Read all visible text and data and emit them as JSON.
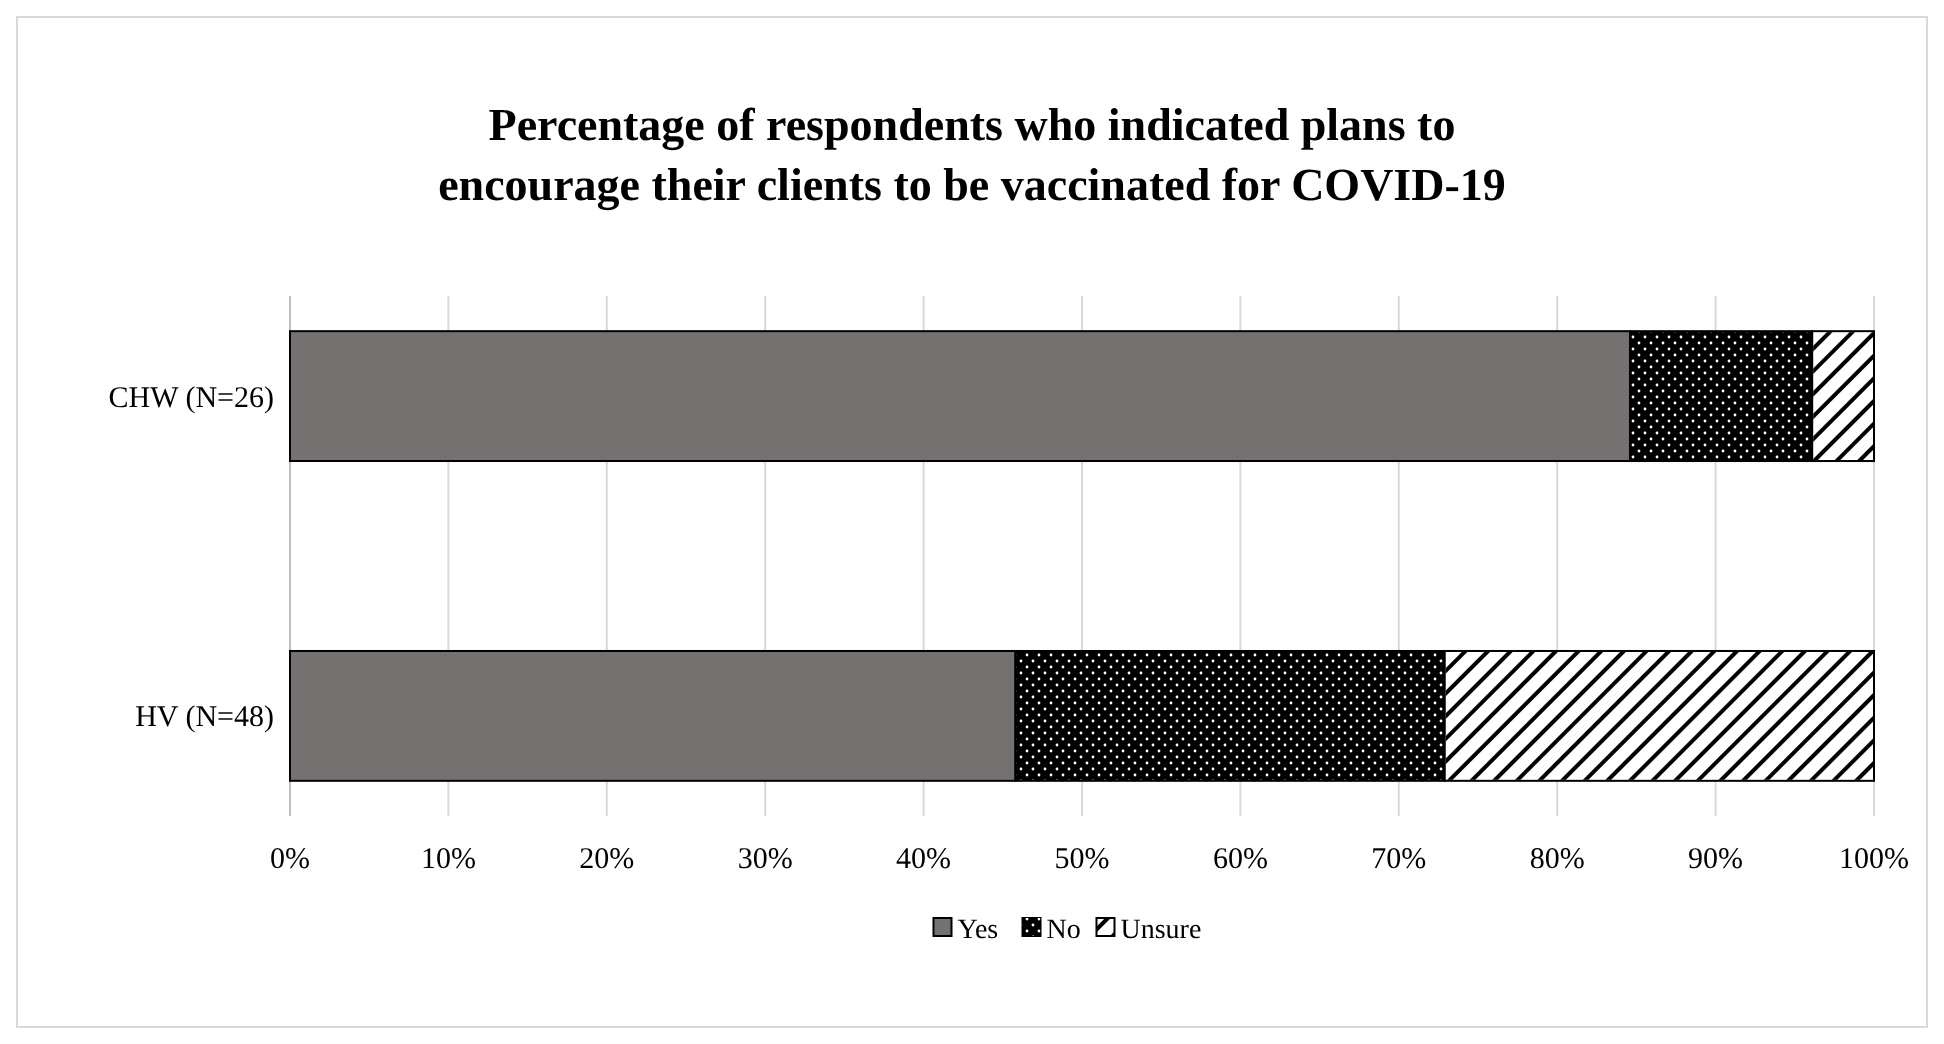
{
  "chart_data": {
    "type": "bar",
    "orientation": "horizontal",
    "stacked": true,
    "title": "Percentage of respondents who indicated plans to encourage their clients to be vaccinated for COVID-19",
    "categories": [
      "CHW (N=26)",
      "HV (N=48)"
    ],
    "series": [
      {
        "name": "Yes",
        "color": "#767171",
        "values": [
          84.6,
          45.8
        ]
      },
      {
        "name": "No",
        "color": "#000000",
        "values": [
          11.5,
          27.1
        ]
      },
      {
        "name": "Unsure",
        "color": "#ffffff",
        "values": [
          3.9,
          27.1
        ]
      }
    ],
    "xlim": [
      0,
      100
    ],
    "xticks": [
      {
        "value": 0,
        "label": "0%"
      },
      {
        "value": 10,
        "label": "10%"
      },
      {
        "value": 20,
        "label": "20%"
      },
      {
        "value": 30,
        "label": "30%"
      },
      {
        "value": 40,
        "label": "40%"
      },
      {
        "value": 50,
        "label": "50%"
      },
      {
        "value": 60,
        "label": "60%"
      },
      {
        "value": 70,
        "label": "70%"
      },
      {
        "value": 80,
        "label": "80%"
      },
      {
        "value": 90,
        "label": "90%"
      },
      {
        "value": 100,
        "label": "100%"
      }
    ],
    "grid": "x",
    "legend": "bottom"
  }
}
